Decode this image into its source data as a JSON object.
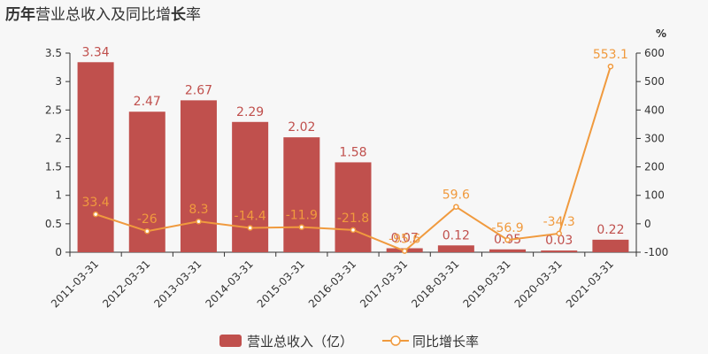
{
  "title_parts": [
    {
      "text": "历年",
      "bold": true
    },
    {
      "text": "营业总",
      "bold": false
    },
    {
      "text": "收入及同比增",
      "bold": false
    },
    {
      "text": "长",
      "bold": true
    },
    {
      "text": "率",
      "bold": false
    }
  ],
  "colors": {
    "bar": "#c0504d",
    "line": "#f09a3e",
    "axis": "#333333"
  },
  "chart_data": {
    "type": "bar",
    "categories": [
      "2011-03-31",
      "2012-03-31",
      "2013-03-31",
      "2014-03-31",
      "2015-03-31",
      "2016-03-31",
      "2017-03-31",
      "2018-03-31",
      "2019-03-31",
      "2020-03-31",
      "2021-03-31"
    ],
    "series": [
      {
        "name": "营业总收入（亿）",
        "type": "bar",
        "axis": "left",
        "values": [
          3.34,
          2.47,
          2.67,
          2.29,
          2.02,
          1.58,
          0.07,
          0.12,
          0.05,
          0.03,
          0.22
        ],
        "labels": [
          "3.34",
          "2.47",
          "2.67",
          "2.29",
          "2.02",
          "1.58",
          "0.07",
          "0.12",
          "0.05",
          "0.03",
          "0.22"
        ]
      },
      {
        "name": "同比增长率",
        "type": "line",
        "axis": "right",
        "values": [
          33.4,
          -26,
          8.3,
          -14.4,
          -11.9,
          -21.8,
          -95.6,
          59.6,
          -56.9,
          -34.3,
          553.1
        ],
        "labels": [
          "33.4",
          "-26",
          "8.3",
          "-14.4",
          "-11.9",
          "-21.8",
          "-95.6",
          "59.6",
          "-56.9",
          "-34.3",
          "553.1"
        ]
      }
    ],
    "y_left": {
      "lim": [
        0,
        3.5
      ],
      "ticks": [
        "0",
        "0.5",
        "1",
        "1.5",
        "2",
        "2.5",
        "3",
        "3.5"
      ]
    },
    "y_right": {
      "unit": "%",
      "lim": [
        -100,
        600
      ],
      "ticks": [
        "-100",
        "0",
        "100",
        "200",
        "300",
        "400",
        "500",
        "600"
      ]
    },
    "legend": {
      "position": "bottom"
    },
    "grid": false
  }
}
